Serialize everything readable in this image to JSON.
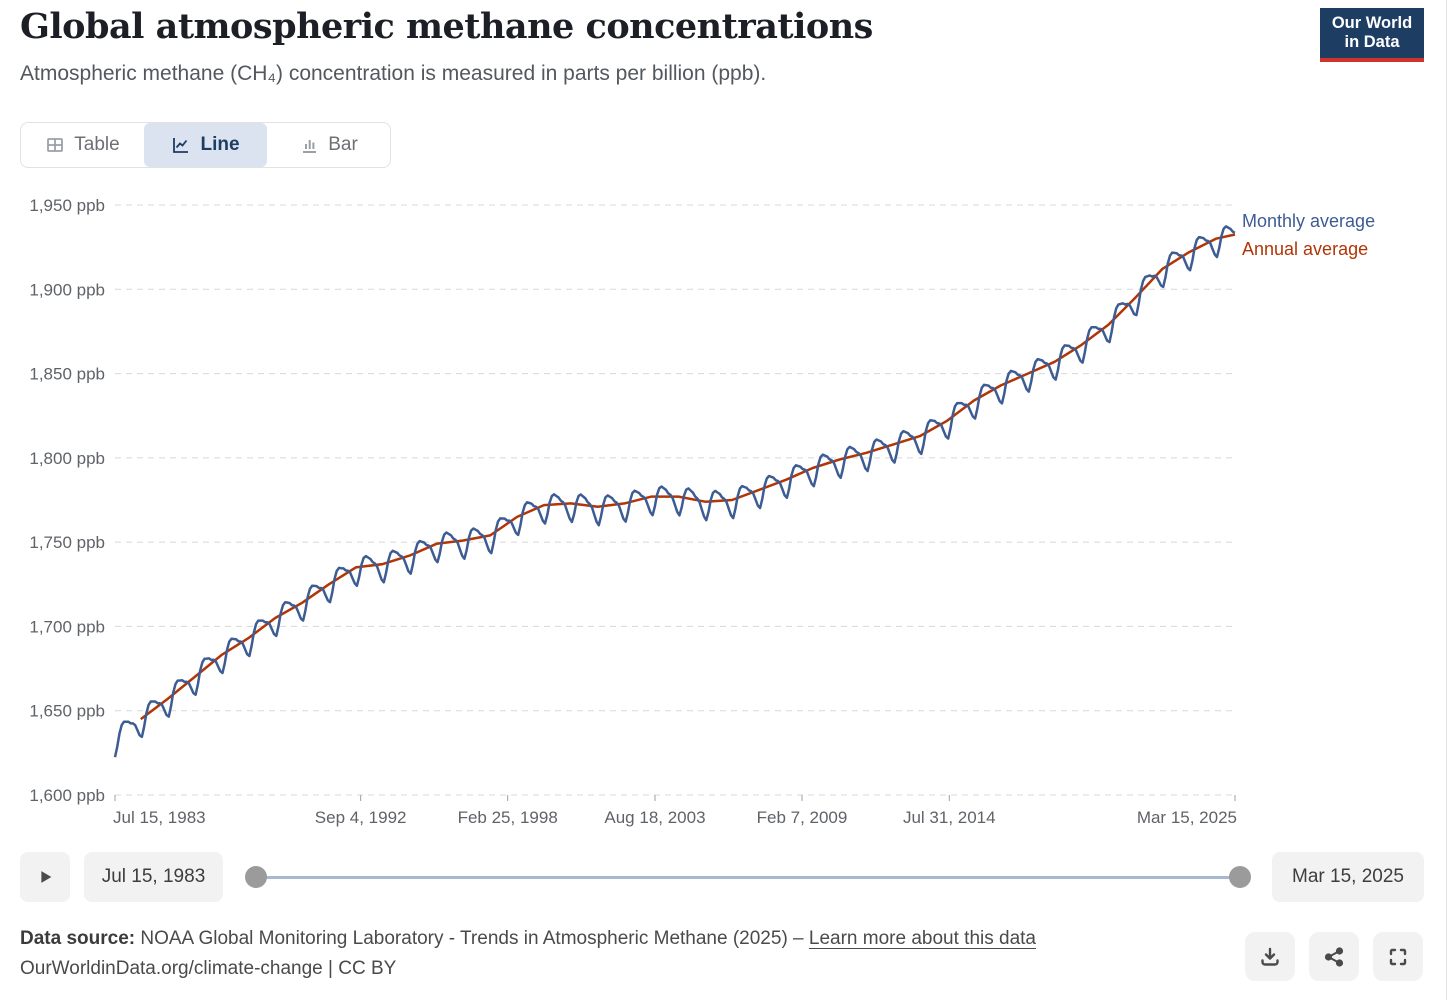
{
  "header": {
    "title": "Global atmospheric methane concentrations",
    "subtitle": "Atmospheric methane (CH₄) concentration is measured in parts per billion (ppb).",
    "logo": {
      "line1": "Our World",
      "line2": "in Data"
    }
  },
  "tabs": [
    {
      "label": "Table",
      "icon": "table-icon",
      "active": false
    },
    {
      "label": "Line",
      "icon": "line-chart-icon",
      "active": true
    },
    {
      "label": "Bar",
      "icon": "bar-chart-icon",
      "active": false
    }
  ],
  "chart_data": {
    "type": "line",
    "title": "Global atmospheric methane concentrations",
    "unit": "ppb",
    "ylim": [
      1600,
      1950
    ],
    "grid": "dashed-horizontal",
    "legend_position": "right-end-of-lines",
    "y_ticks": [
      {
        "value": 1600,
        "label": "1,600 ppb"
      },
      {
        "value": 1650,
        "label": "1,650 ppb"
      },
      {
        "value": 1700,
        "label": "1,700 ppb"
      },
      {
        "value": 1750,
        "label": "1,750 ppb"
      },
      {
        "value": 1800,
        "label": "1,800 ppb"
      },
      {
        "value": 1850,
        "label": "1,850 ppb"
      },
      {
        "value": 1900,
        "label": "1,900 ppb"
      },
      {
        "value": 1950,
        "label": "1,950 ppb"
      }
    ],
    "x_range": [
      1983.54,
      2025.21
    ],
    "x_ticks": [
      {
        "t": 1983.54,
        "label": "Jul 15, 1983",
        "anchor": "start"
      },
      {
        "t": 1992.68,
        "label": "Sep 4, 1992",
        "anchor": "middle"
      },
      {
        "t": 1998.15,
        "label": "Feb 25, 1998",
        "anchor": "middle"
      },
      {
        "t": 2003.63,
        "label": "Aug 18, 2003",
        "anchor": "middle"
      },
      {
        "t": 2009.1,
        "label": "Feb 7, 2009",
        "anchor": "middle"
      },
      {
        "t": 2014.58,
        "label": "Jul 31, 2014",
        "anchor": "middle"
      },
      {
        "t": 2025.21,
        "label": "Mar 15, 2025",
        "anchor": "end"
      }
    ],
    "series": [
      {
        "name": "Monthly average",
        "color": "#3d5c94",
        "derivation": "annual-trend-plus-seasonal-cycle",
        "seasonal_cycle_ppb_jan_to_dec": [
          4,
          2,
          1,
          -1,
          -5,
          -9,
          -11,
          -6,
          1,
          5,
          6,
          5
        ],
        "start": {
          "t": 1983.54,
          "value": 1623
        },
        "end": {
          "t": 2025.21,
          "value": 1934
        }
      },
      {
        "name": "Annual average",
        "color": "#b13507",
        "years": [
          1984,
          1985,
          1986,
          1987,
          1988,
          1989,
          1990,
          1991,
          1992,
          1993,
          1994,
          1995,
          1996,
          1997,
          1998,
          1999,
          2000,
          2001,
          2002,
          2003,
          2004,
          2005,
          2006,
          2007,
          2008,
          2009,
          2010,
          2011,
          2012,
          2013,
          2014,
          2015,
          2016,
          2017,
          2018,
          2019,
          2020,
          2021,
          2022,
          2023,
          2024
        ],
        "values": [
          1645,
          1657,
          1670,
          1683,
          1693,
          1705,
          1714,
          1725,
          1735,
          1737,
          1742,
          1749,
          1751,
          1754,
          1765,
          1772,
          1773,
          1771,
          1773,
          1777,
          1777,
          1774,
          1775,
          1781,
          1787,
          1794,
          1799,
          1803,
          1808,
          1813,
          1822,
          1834,
          1843,
          1850,
          1857,
          1867,
          1879,
          1895,
          1912,
          1922,
          1930
        ],
        "end_point": {
          "t": 2025.21,
          "value": 1932.5
        }
      }
    ]
  },
  "timeline": {
    "start": "Jul 15, 1983",
    "end": "Mar 15, 2025"
  },
  "footer": {
    "source_label": "Data source:",
    "source_text": " NOAA Global Monitoring Laboratory - Trends in Atmospheric Methane (2025) – ",
    "source_link": "Learn more about this data",
    "attribution": "OurWorldinData.org/climate-change | CC BY"
  },
  "colors": {
    "monthly_line": "#3d5c94",
    "annual_line": "#b13507",
    "grid": "#d8d8d8",
    "axis_text": "#5f6368",
    "active_tab_bg": "#dbe2f0",
    "logo_bg": "#1d3d63",
    "logo_accent": "#d1342c"
  }
}
